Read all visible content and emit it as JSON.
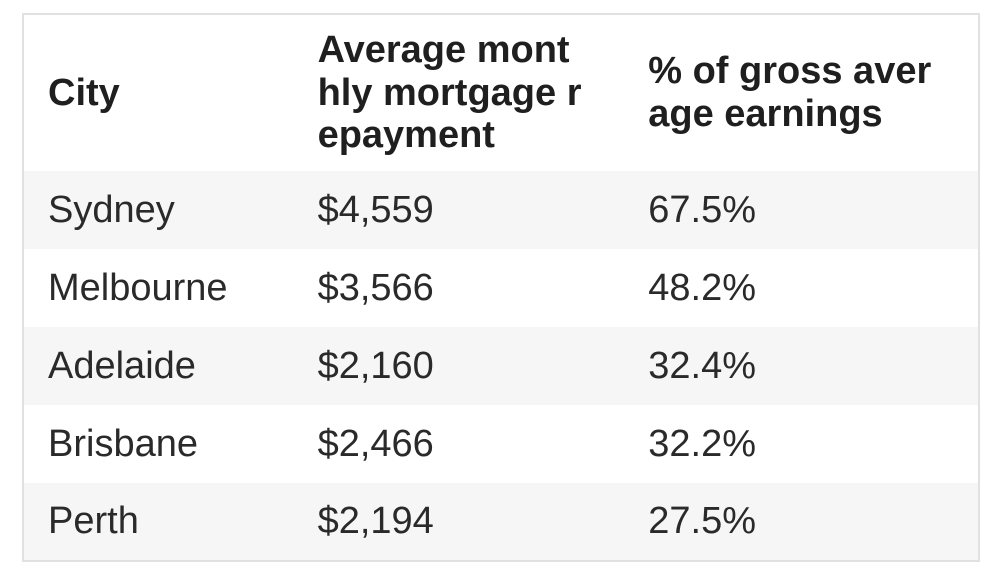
{
  "table": {
    "border_color": "#e1e1e1",
    "zebra_row_color": "#f6f6f6",
    "text_color": "#2a2a2a",
    "columns": [
      {
        "label": "City"
      },
      {
        "label": "Average mont\nhly mortgage r\nepayment"
      },
      {
        "label": "% of gross aver\nage earnings"
      }
    ],
    "rows": [
      {
        "city": "Sydney",
        "repayment": "$4,559",
        "percent": "67.5%"
      },
      {
        "city": "Melbourne",
        "repayment": "$3,566",
        "percent": "48.2%"
      },
      {
        "city": "Adelaide",
        "repayment": "$2,160",
        "percent": "32.4%"
      },
      {
        "city": "Brisbane",
        "repayment": "$2,466",
        "percent": "32.2%"
      },
      {
        "city": "Perth",
        "repayment": "$2,194",
        "percent": "27.5%"
      }
    ]
  },
  "chart_data": {
    "type": "table",
    "title": "",
    "columns": [
      "City",
      "Average monthly mortgage repayment",
      "% of gross average earnings"
    ],
    "rows": [
      [
        "Sydney",
        "$4,559",
        "67.5%"
      ],
      [
        "Melbourne",
        "$3,566",
        "48.2%"
      ],
      [
        "Adelaide",
        "$2,160",
        "32.4%"
      ],
      [
        "Brisbane",
        "$2,466",
        "32.2%"
      ],
      [
        "Perth",
        "$2,194",
        "27.5%"
      ]
    ],
    "numeric": {
      "average_monthly_mortgage_repayment": [
        4559,
        3566,
        2160,
        2466,
        2194
      ],
      "percent_of_gross_average_earnings": [
        67.5,
        48.2,
        32.4,
        32.2,
        27.5
      ]
    },
    "layout": {
      "zebra_striping": true,
      "striped_rows": [
        "Sydney",
        "Adelaide",
        "Perth"
      ]
    }
  }
}
